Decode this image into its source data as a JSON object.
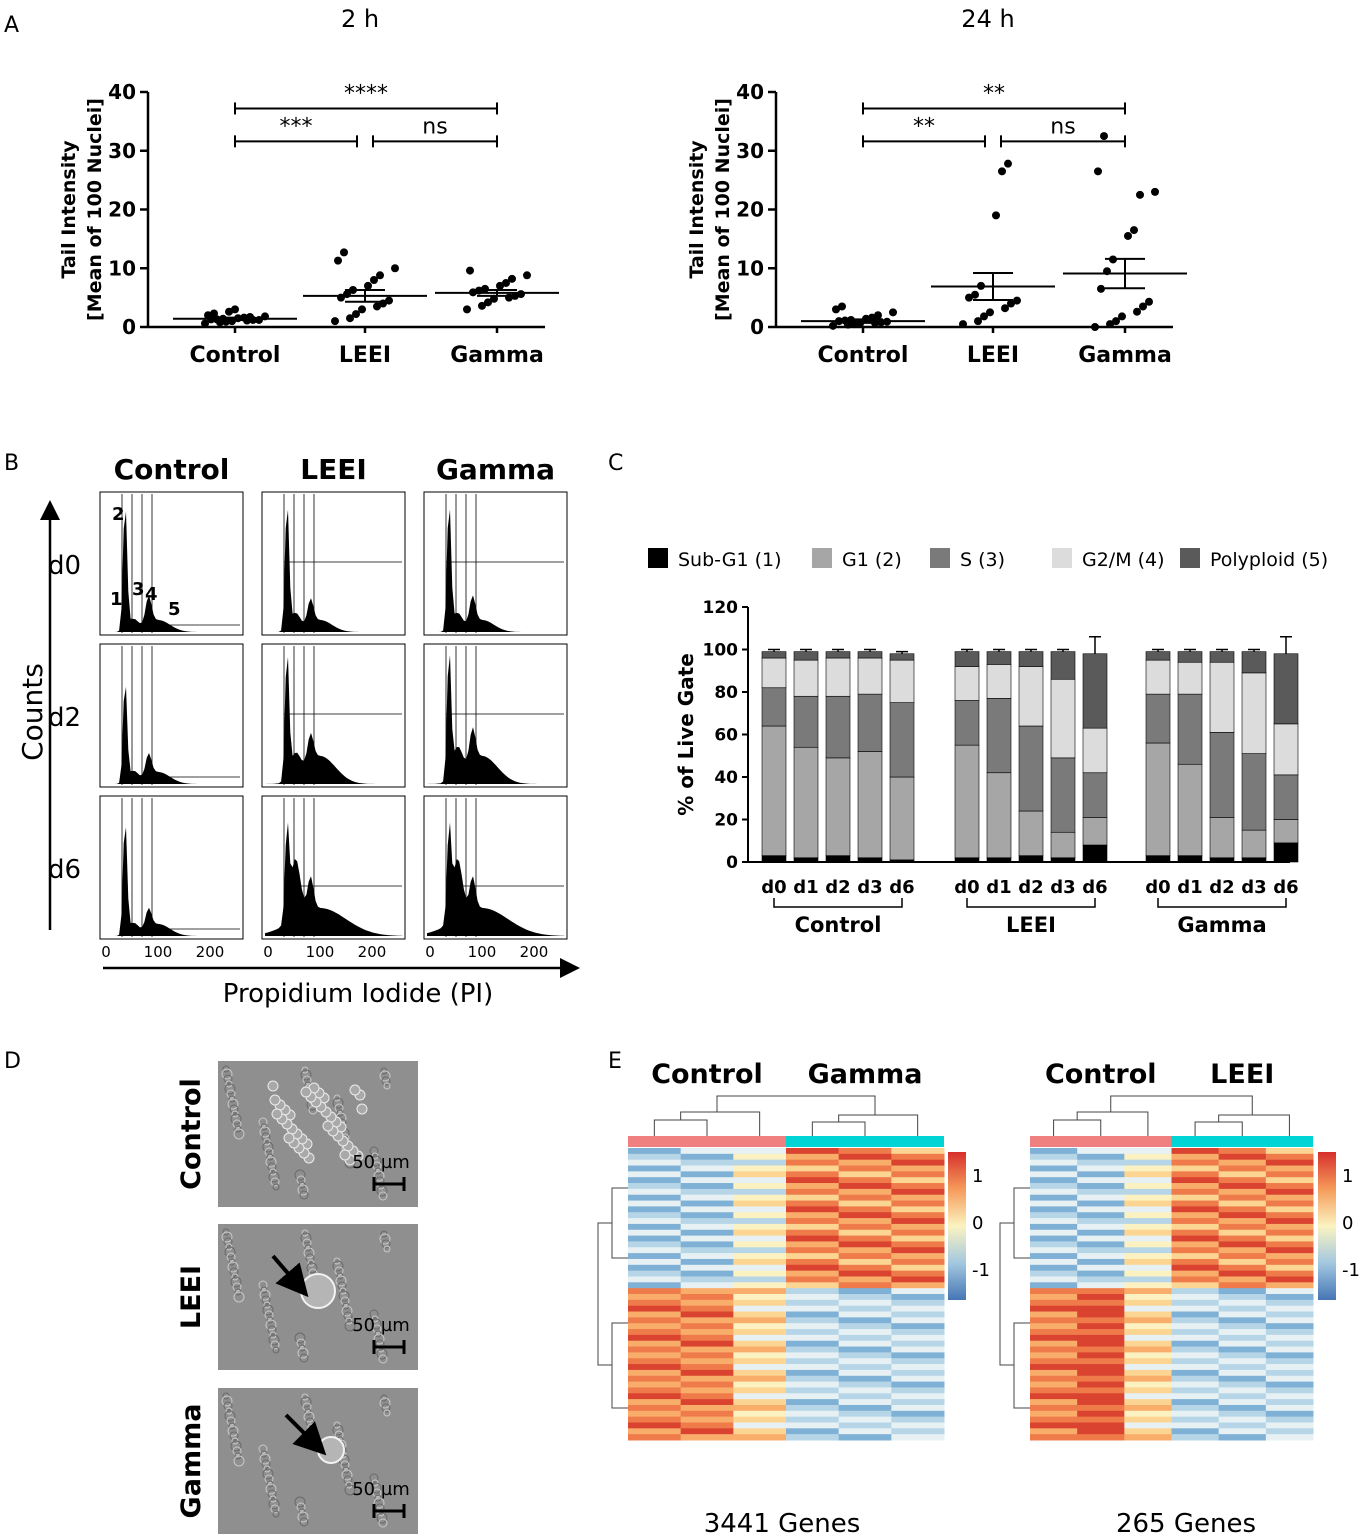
{
  "panel_labels": {
    "a": "A",
    "b": "B",
    "c": "C",
    "d": "D",
    "e": "E"
  },
  "chart_data": [
    {
      "id": "A-2h",
      "type": "scatter",
      "title": "2 h",
      "ylabel_line1": "Tail Intensity",
      "ylabel_line2": "[Mean of 100 Nuclei]",
      "categories": [
        "Control",
        "LEEI",
        "Gamma"
      ],
      "ylim": [
        0,
        40
      ],
      "yticks": [
        0,
        10,
        20,
        30,
        40
      ],
      "series": [
        {
          "name": "Control",
          "mean": 1.4,
          "sem": 0.2,
          "values": [
            0.6,
            0.8,
            0.9,
            1.0,
            1.1,
            1.2,
            1.2,
            1.3,
            1.3,
            1.4,
            1.5,
            1.6,
            1.7,
            1.8,
            2.0,
            2.3,
            2.6,
            3.0
          ]
        },
        {
          "name": "LEEI",
          "mean": 5.3,
          "sem": 1.0,
          "values": [
            1.0,
            1.5,
            2.2,
            3.0,
            3.5,
            4.0,
            4.5,
            5.0,
            5.6,
            6.3,
            7.0,
            8.0,
            8.8,
            10.0,
            11.3,
            12.7
          ]
        },
        {
          "name": "Gamma",
          "mean": 5.8,
          "sem": 0.5,
          "values": [
            3.0,
            3.6,
            4.2,
            4.8,
            5.0,
            5.3,
            5.6,
            5.9,
            6.2,
            6.5,
            7.0,
            7.5,
            8.2,
            8.8,
            9.6
          ]
        }
      ],
      "significance": [
        {
          "from": "Control",
          "to": "LEEI",
          "label": "***"
        },
        {
          "from": "LEEI",
          "to": "Gamma",
          "label": "ns"
        },
        {
          "from": "Control",
          "to": "Gamma",
          "label": "****"
        }
      ]
    },
    {
      "id": "A-24h",
      "type": "scatter",
      "title": "24 h",
      "ylabel_line1": "Tail Intensity",
      "ylabel_line2": "[Mean of 100 Nuclei]",
      "categories": [
        "Control",
        "LEEI",
        "Gamma"
      ],
      "ylim": [
        0,
        40
      ],
      "yticks": [
        0,
        10,
        20,
        30,
        40
      ],
      "series": [
        {
          "name": "Control",
          "mean": 1.0,
          "sem": 0.3,
          "values": [
            0.2,
            0.4,
            0.5,
            0.6,
            0.7,
            0.8,
            0.9,
            1.0,
            1.1,
            1.2,
            1.4,
            1.6,
            2.0,
            2.5,
            3.0,
            3.5
          ]
        },
        {
          "name": "LEEI",
          "mean": 6.9,
          "sem": 2.3,
          "values": [
            0.5,
            1.0,
            1.8,
            2.5,
            3.2,
            4.0,
            4.5,
            5.0,
            5.5,
            7.0,
            19.0,
            26.5,
            27.8
          ]
        },
        {
          "name": "Gamma",
          "mean": 9.1,
          "sem": 2.5,
          "values": [
            0.0,
            0.5,
            1.0,
            1.8,
            2.6,
            3.5,
            4.3,
            6.5,
            9.5,
            11.5,
            15.5,
            16.5,
            22.5,
            23.0,
            26.5,
            32.5
          ]
        }
      ],
      "significance": [
        {
          "from": "Control",
          "to": "LEEI",
          "label": "**"
        },
        {
          "from": "LEEI",
          "to": "Gamma",
          "label": "ns"
        },
        {
          "from": "Control",
          "to": "Gamma",
          "label": "**"
        }
      ]
    },
    {
      "id": "B-histograms",
      "type": "histogram-grid",
      "columns": [
        "Control",
        "LEEI",
        "Gamma"
      ],
      "rows": [
        "d0",
        "d2",
        "d6"
      ],
      "ylabel": "Counts",
      "xlabel": "Propidium Iodide (PI)",
      "xticks": [
        0,
        100,
        200
      ],
      "gate_labels": [
        "1",
        "2",
        "3",
        "4",
        "5"
      ]
    },
    {
      "id": "C-stacked",
      "type": "bar",
      "stacked": true,
      "ylabel": "% of Live Gate",
      "ylim": [
        0,
        120
      ],
      "yticks": [
        0,
        20,
        40,
        60,
        80,
        100,
        120
      ],
      "groups": [
        "Control",
        "LEEI",
        "Gamma"
      ],
      "days": [
        "d0",
        "d1",
        "d2",
        "d3",
        "d6"
      ],
      "series": [
        {
          "name": "Sub-G1 (1)",
          "color": "#000000"
        },
        {
          "name": "G1 (2)",
          "color": "#a6a6a6"
        },
        {
          "name": "S (3)",
          "color": "#7a7a7a"
        },
        {
          "name": "G2/M (4)",
          "color": "#dcdcdc"
        },
        {
          "name": "Polyploid (5)",
          "color": "#5a5a5a"
        }
      ],
      "cumulative_tops": {
        "Control": [
          [
            3,
            64,
            82,
            96,
            99
          ],
          [
            2,
            54,
            78,
            95,
            99
          ],
          [
            3,
            49,
            78,
            96,
            99
          ],
          [
            2,
            52,
            79,
            96,
            99
          ],
          [
            1,
            40,
            75,
            95,
            98
          ]
        ],
        "LEEI": [
          [
            2,
            55,
            76,
            92,
            99
          ],
          [
            2,
            42,
            77,
            93,
            99
          ],
          [
            3,
            24,
            64,
            92,
            99
          ],
          [
            2,
            14,
            49,
            86,
            99
          ],
          [
            8,
            21,
            42,
            63,
            98
          ]
        ],
        "Gamma": [
          [
            3,
            56,
            79,
            95,
            99
          ],
          [
            3,
            46,
            79,
            94,
            99
          ],
          [
            2,
            21,
            61,
            94,
            99
          ],
          [
            2,
            15,
            51,
            89,
            99
          ],
          [
            9,
            20,
            41,
            65,
            98
          ]
        ]
      },
      "errors": {
        "Control": [
          [
            1,
            2,
            2,
            1,
            1
          ],
          [
            1,
            4,
            2,
            1,
            1
          ],
          [
            1,
            1,
            1,
            1,
            1
          ],
          [
            1,
            2,
            1,
            1,
            1
          ],
          [
            1,
            4,
            2,
            1,
            1
          ]
        ],
        "LEEI": [
          [
            1,
            4,
            2,
            1,
            1
          ],
          [
            1,
            5,
            3,
            1,
            1
          ],
          [
            1,
            3,
            4,
            2,
            1
          ],
          [
            1,
            1,
            3,
            2,
            1
          ],
          [
            3,
            3,
            2,
            3,
            8
          ]
        ],
        "Gamma": [
          [
            1,
            4,
            2,
            1,
            1
          ],
          [
            1,
            5,
            3,
            1,
            1
          ],
          [
            1,
            2,
            4,
            2,
            1
          ],
          [
            1,
            1,
            4,
            2,
            1
          ],
          [
            3,
            2,
            2,
            3,
            8
          ]
        ]
      }
    },
    {
      "id": "E-heatmaps",
      "type": "heatmap",
      "maps": [
        {
          "groups": [
            "Control",
            "Gamma"
          ],
          "caption": "3441 Genes",
          "group_colors": [
            "#f08080",
            "#00d4d4"
          ],
          "columns": 6
        },
        {
          "groups": [
            "Control",
            "LEEI"
          ],
          "caption": "265 Genes",
          "group_colors": [
            "#f08080",
            "#00d4d4"
          ],
          "columns": 6
        }
      ],
      "scale_ticks": [
        "1",
        "0",
        "-1"
      ]
    }
  ],
  "images": {
    "rows": [
      "Control",
      "LEEI",
      "Gamma"
    ],
    "scale_label": "50 µm"
  }
}
